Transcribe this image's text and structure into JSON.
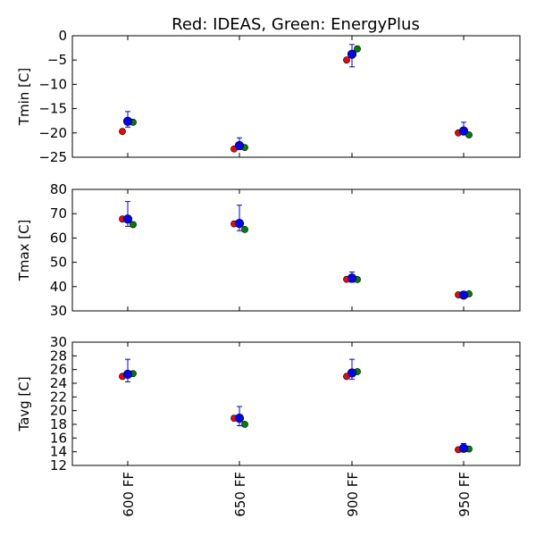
{
  "title": "Red: IDEAS, Green: EnergyPlus",
  "colors": {
    "ideas": "#ff0000",
    "energyplus": "#008000",
    "reference": "#0000ff",
    "axis": "#000000"
  },
  "chart_data": {
    "type": "scatter",
    "title": "Red: IDEAS, Green: EnergyPlus",
    "categories": [
      "600 FF",
      "650 FF",
      "900 FF",
      "950 FF"
    ],
    "panels": [
      {
        "ylabel": "Tmin [C]",
        "ylim": [
          -25,
          0
        ],
        "yticks": [
          0,
          -5,
          -10,
          -15,
          -20,
          -25
        ],
        "ytick_labels": [
          "0",
          "−5",
          "−10",
          "−15",
          "−20",
          "−25"
        ],
        "series": [
          {
            "name": "IDEAS",
            "color": "#ff0000",
            "values": [
              -19.7,
              -23.3,
              -5.0,
              -20.0
            ]
          },
          {
            "name": "EnergyPlus",
            "color": "#008000",
            "values": [
              -17.8,
              -23.0,
              -2.7,
              -20.4
            ]
          },
          {
            "color": "#0000ff",
            "values": [
              -17.6,
              -22.6,
              -3.8,
              -19.6
            ],
            "err_low": [
              -18.8,
              -23.4,
              -6.4,
              -20.2
            ],
            "err_high": [
              -15.6,
              -21.0,
              -1.8,
              -17.8
            ]
          }
        ]
      },
      {
        "ylabel": "Tmax [C]",
        "ylim": [
          30,
          80
        ],
        "yticks": [
          30,
          40,
          50,
          60,
          70,
          80
        ],
        "ytick_labels": [
          "30",
          "40",
          "50",
          "60",
          "70",
          "80"
        ],
        "series": [
          {
            "name": "IDEAS",
            "color": "#ff0000",
            "values": [
              67.8,
              65.8,
              43.0,
              36.6
            ]
          },
          {
            "name": "EnergyPlus",
            "color": "#008000",
            "values": [
              65.5,
              63.5,
              42.9,
              37.0
            ]
          },
          {
            "color": "#0000ff",
            "values": [
              67.8,
              66.0,
              43.5,
              36.5
            ],
            "err_low": [
              64.8,
              63.0,
              41.8,
              35.5
            ],
            "err_high": [
              75.0,
              73.5,
              46.0,
              37.5
            ]
          }
        ]
      },
      {
        "ylabel": "Tavg [C]",
        "ylim": [
          12,
          30
        ],
        "yticks": [
          12,
          14,
          16,
          18,
          20,
          22,
          24,
          26,
          28,
          30
        ],
        "ytick_labels": [
          "12",
          "14",
          "16",
          "18",
          "20",
          "22",
          "24",
          "26",
          "28",
          "30"
        ],
        "series": [
          {
            "name": "IDEAS",
            "color": "#ff0000",
            "values": [
              25.0,
              18.9,
              25.0,
              14.3
            ]
          },
          {
            "name": "EnergyPlus",
            "color": "#008000",
            "values": [
              25.4,
              18.0,
              25.7,
              14.4
            ]
          },
          {
            "color": "#0000ff",
            "values": [
              25.3,
              18.9,
              25.5,
              14.5
            ],
            "err_low": [
              24.2,
              17.8,
              24.6,
              14.0
            ],
            "err_high": [
              27.5,
              20.6,
              27.5,
              15.2
            ]
          }
        ]
      }
    ]
  }
}
